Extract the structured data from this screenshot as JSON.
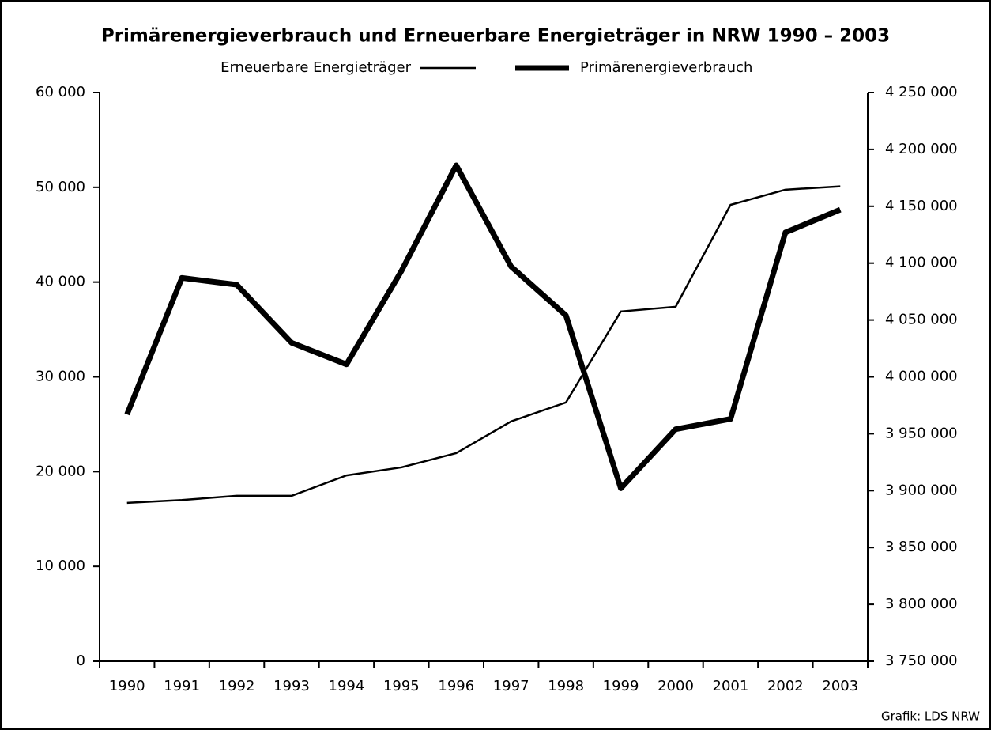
{
  "chart_data": {
    "type": "line",
    "title": "Primärenergieverbrauch und Erneuerbare Energieträger in NRW 1990 – 2003",
    "source": "Grafik: LDS NRW",
    "categories": [
      "1990",
      "1991",
      "1992",
      "1993",
      "1994",
      "1995",
      "1996",
      "1997",
      "1998",
      "1999",
      "2000",
      "2001",
      "2002",
      "2003"
    ],
    "series": [
      {
        "name": "Erneuerbare Energieträger",
        "color": "#000000",
        "values": [
          16700,
          17000,
          17450,
          17450,
          19600,
          20450,
          21950,
          25300,
          27300,
          36900,
          37400,
          48150,
          49750,
          50100
        ]
      },
      {
        "name": "Primärenergieverbrauch",
        "color": "#000000",
        "axis": "y2",
        "values": [
          3967000,
          4087000,
          4081000,
          4030000,
          4011000,
          4093000,
          4186000,
          4097000,
          4054000,
          3902000,
          3954000,
          3963000,
          4127000,
          4147000
        ]
      }
    ],
    "ylim": [
      0,
      60000
    ],
    "yticks": [
      0,
      {
        "value": 10000,
        "label": "10 000"
      },
      {
        "value": 20000,
        "label": "20 000"
      },
      {
        "value": 30000,
        "label": "30 000"
      },
      {
        "value": 40000,
        "label": "40 000"
      },
      {
        "value": 50000,
        "label": "50 000"
      },
      {
        "value": 60000,
        "label": "60 000"
      }
    ],
    "y2lim": [
      3750000,
      4250000
    ],
    "y2ticks": [
      {
        "value": 3750000,
        "label": "3 750 000"
      },
      {
        "value": 3800000,
        "label": "3 800 000"
      },
      {
        "value": 3850000,
        "label": "3 850 000"
      },
      {
        "value": 3900000,
        "label": "3 900 000"
      },
      {
        "value": 3950000,
        "label": "3 950 000"
      },
      {
        "value": 4000000,
        "label": "4 000 000"
      },
      {
        "value": 4050000,
        "label": "4 050 000"
      },
      {
        "value": 4100000,
        "label": "4 100 000"
      },
      {
        "value": 4150000,
        "label": "4 150 000"
      },
      {
        "value": 4200000,
        "label": "4 200 000"
      },
      {
        "value": 4250000,
        "label": "4 250 000"
      }
    ],
    "grid": false
  }
}
